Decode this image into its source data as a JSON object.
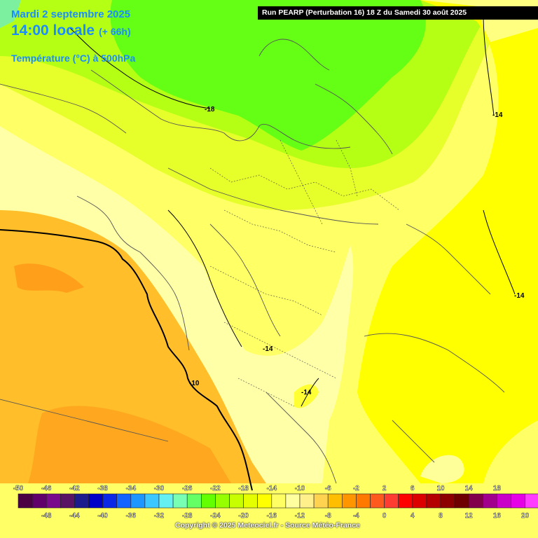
{
  "header": {
    "date": "Mardi 2 septembre 2025",
    "time": "14:00 locale",
    "lead": "(+ 66h)",
    "parameter": "Température (°C) à 500hPa"
  },
  "run_info": "Run PEARP (Perturbation 16) 18 Z du Samedi 30 août 2025",
  "isotherm_labels": [
    "-18",
    "-14",
    "-14",
    "-14",
    "-10",
    "-14"
  ],
  "legend": {
    "top_labels": [
      "-50",
      "-46",
      "-42",
      "-38",
      "-34",
      "-30",
      "-26",
      "-22",
      "-18",
      "-14",
      "-10",
      "-6",
      "-2",
      "2",
      "6",
      "10",
      "14",
      "18"
    ],
    "bottom_labels": [
      "-48",
      "-44",
      "-40",
      "-36",
      "-32",
      "-28",
      "-24",
      "-20",
      "-16",
      "-12",
      "-8",
      "-4",
      "0",
      "4",
      "8",
      "12",
      "16",
      "20"
    ],
    "colors": [
      "#4b0044",
      "#62006b",
      "#7a0a8c",
      "#5a1464",
      "#1c1c8c",
      "#0000c8",
      "#0a28e6",
      "#1464ff",
      "#1e96ff",
      "#3cc8ff",
      "#64f0f0",
      "#78ffb4",
      "#64ff64",
      "#64ff00",
      "#96ff00",
      "#c8ff00",
      "#e6ff00",
      "#ffff00",
      "#ffff64",
      "#ffffa0",
      "#fff08c",
      "#ffd250",
      "#ffbe00",
      "#ff9600",
      "#ff7800",
      "#ff5a1e",
      "#ff3c32",
      "#ff0000",
      "#dc0000",
      "#b40000",
      "#8c0000",
      "#6e0000",
      "#82004b",
      "#a0008c",
      "#c800c8",
      "#e600e6",
      "#ff3cff",
      "#ff8cff"
    ]
  },
  "copyright": "Copyright © 2025 Meteociel.fr - Source Météo-France"
}
